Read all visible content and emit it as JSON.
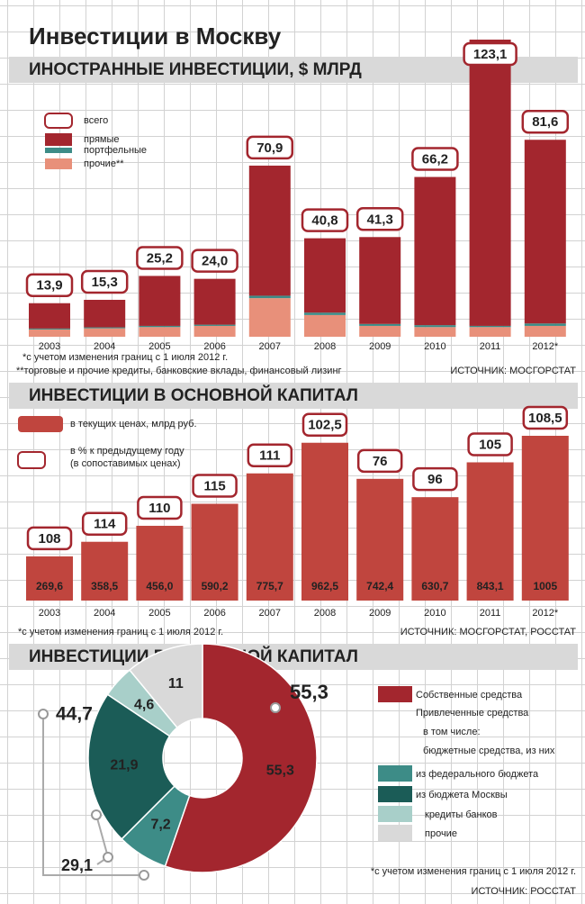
{
  "title": "Инвестиции в Москву",
  "chart_data": [
    {
      "type": "stacked-bar",
      "title": "ИНОСТРАННЫЕ ИНВЕСТИЦИИ, $ МЛРД",
      "categories": [
        "2003",
        "2004",
        "2005",
        "2006",
        "2007",
        "2008",
        "2009",
        "2010",
        "2011",
        "2012*"
      ],
      "total": {
        "name": "всего",
        "values": [
          13.9,
          15.3,
          25.2,
          24.0,
          70.9,
          40.8,
          41.3,
          66.2,
          123.1,
          81.6
        ],
        "value_labels": [
          "13,9",
          "15,3",
          "25,2",
          "24,0",
          "70,9",
          "40,8",
          "41,3",
          "66,2",
          "123,1",
          "81,6"
        ]
      },
      "series": [
        {
          "name": "прямые",
          "color": "#a3262e",
          "values": [
            10.5,
            11.4,
            20.7,
            19.0,
            53.9,
            30.8,
            36.0,
            61.4,
            118.6,
            76.1
          ]
        },
        {
          "name": "портфельные",
          "color": "#3d8c87",
          "values": [
            0.4,
            0.4,
            0.5,
            0.5,
            1.0,
            1.0,
            0.8,
            0.8,
            0.5,
            1.0
          ]
        },
        {
          "name": "прочие**",
          "color": "#e8907a",
          "values": [
            3.0,
            3.5,
            4.0,
            4.5,
            16.0,
            9.0,
            4.5,
            4.0,
            4.0,
            4.5
          ]
        }
      ],
      "footnotes": [
        "*с учетом изменения границ с 1 июля 2012 г.",
        "**торговые и прочие кредиты, банковские вклады, финансовый лизинг"
      ],
      "source": "ИСТОЧНИК: МОСГОРСТАТ"
    },
    {
      "type": "bar",
      "title": "ИНВЕСТИЦИИ В ОСНОВНОЙ КАПИТАЛ",
      "categories": [
        "2003",
        "2004",
        "2005",
        "2006",
        "2007",
        "2008",
        "2009",
        "2010",
        "2011",
        "2012*"
      ],
      "series": [
        {
          "name": "в текущих ценах, млрд руб.",
          "color": "#c0453e",
          "values": [
            269.6,
            358.5,
            456.0,
            590.2,
            775.7,
            962.5,
            742.4,
            630.7,
            843.1,
            1005
          ],
          "value_labels": [
            "269,6",
            "358,5",
            "456,0",
            "590,2",
            "775,7",
            "962,5",
            "742,4",
            "630,7",
            "843,1",
            "1005"
          ]
        }
      ],
      "change": {
        "name": "в % к предыдущему году\n(в сопоставимых ценах)",
        "values": [
          108,
          114,
          110,
          115,
          111,
          102.5,
          76,
          96,
          105,
          108.5
        ],
        "value_labels": [
          "108",
          "114",
          "110",
          "115",
          "111",
          "102,5",
          "76",
          "96",
          "105",
          "108,5"
        ]
      },
      "footnotes": [
        "*с учетом изменения границ с 1 июля 2012 г."
      ],
      "source": "ИСТОЧНИК: МОСГОРСТАТ, РОССТАТ"
    },
    {
      "type": "pie",
      "title": "ИНВЕСТИЦИИ В ОСНОВНОЙ КАПИТАЛ",
      "labels": [
        "Собственные средства",
        "из федерального бюджета",
        "из бюджета Москвы",
        "кредиты банков",
        "прочие"
      ],
      "values": [
        55.3,
        7.2,
        21.9,
        4.6,
        11
      ],
      "value_labels": [
        "55,3",
        "7,2",
        "21,9",
        "4,6",
        "11"
      ],
      "colors": [
        "#a3262e",
        "#3d8c87",
        "#1b5c57",
        "#a8cfc9",
        "#d9d9d9"
      ],
      "groups": [
        {
          "name": "Привлеченные средства",
          "value": 44.7,
          "value_label": "44,7"
        },
        {
          "name": "бюджетные средства, из них",
          "value": 29.1,
          "value_label": "29,1"
        }
      ],
      "legend_note": "в том числе:",
      "footnotes": [
        "*с учетом изменения границ с 1 июля 2012 г."
      ],
      "source": "ИСТОЧНИК: РОССТАТ"
    }
  ]
}
